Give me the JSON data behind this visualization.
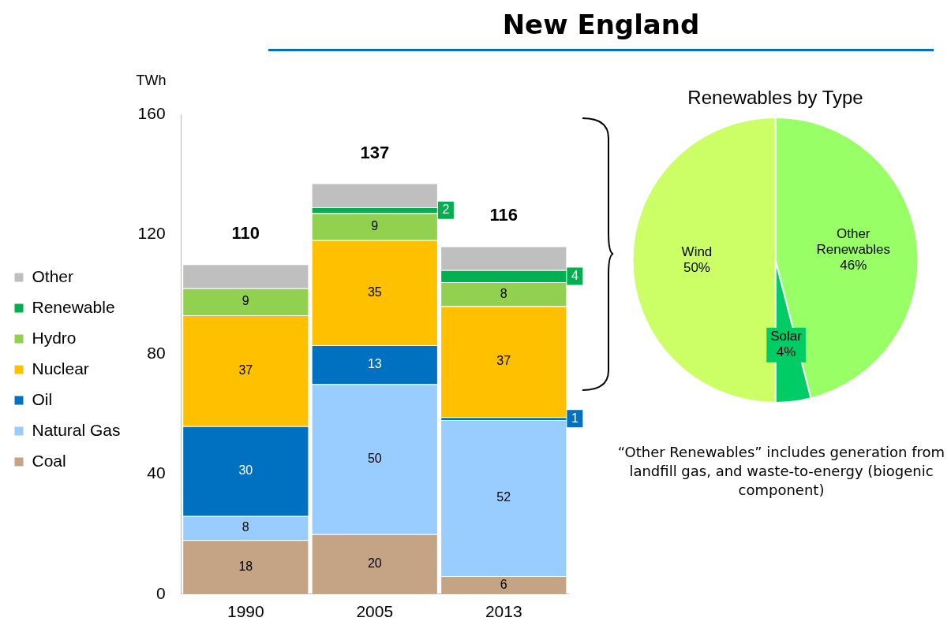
{
  "chart_data": [
    {
      "type": "bar",
      "title": "New England",
      "ylabel": "TWh",
      "categories": [
        "1990",
        "2005",
        "2013"
      ],
      "stacked": true,
      "ylim": [
        0,
        160
      ],
      "yticks": [
        0,
        40,
        80,
        120,
        160
      ],
      "legend": "left",
      "series": [
        {
          "name": "Coal",
          "color": "#c4a484",
          "values": [
            18,
            20,
            6
          ],
          "value_labels": [
            "18",
            "20",
            "6"
          ]
        },
        {
          "name": "Natural Gas",
          "color": "#99ccff",
          "values": [
            8,
            50,
            52
          ],
          "value_labels": [
            "8",
            "50",
            "52"
          ]
        },
        {
          "name": "Oil",
          "color": "#0070c0",
          "values": [
            30,
            13,
            1
          ],
          "value_labels": [
            "30",
            "13",
            "1"
          ]
        },
        {
          "name": "Nuclear",
          "color": "#ffc000",
          "values": [
            37,
            35,
            37
          ],
          "value_labels": [
            "37",
            "35",
            "37"
          ]
        },
        {
          "name": "Hydro",
          "color": "#92d050",
          "values": [
            9,
            9,
            8
          ],
          "value_labels": [
            "9",
            "9",
            "8"
          ]
        },
        {
          "name": "Renewable",
          "color": "#00b050",
          "values": [
            null,
            2,
            4
          ],
          "value_labels": [
            null,
            "2",
            "4"
          ]
        },
        {
          "name": "Other",
          "color": "#bfbfbf",
          "values": [
            8,
            8,
            8
          ]
        }
      ],
      "totals": [
        "110",
        "137",
        "116"
      ]
    },
    {
      "type": "pie",
      "title": "Renewables by Type",
      "categories": [
        "Other Renewables",
        "Solar",
        "Wind"
      ],
      "values": [
        46,
        4,
        50
      ],
      "colors": [
        "#99ff66",
        "#00cc66",
        "#ccff66"
      ],
      "value_labels": [
        "46%",
        "4%",
        "50%"
      ],
      "annotations": [
        "“Other Renewables” includes generation from landfill gas, and waste-to-energy (biogenic component)"
      ]
    }
  ]
}
